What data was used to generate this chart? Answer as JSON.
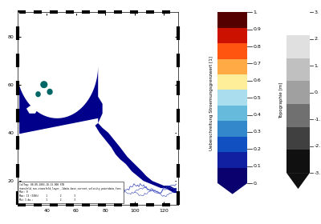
{
  "colorbar1_label": "Ueberschreitung Stroemungsgrenzwert [1]",
  "colorbar1_ticks": [
    0.0,
    0.1,
    0.2,
    0.3,
    0.4,
    0.5,
    0.6,
    0.7,
    0.8,
    0.9,
    1.0
  ],
  "colorbar1_tick_labels": [
    "0.",
    "0.1",
    "0.2",
    "0.3",
    "0.4",
    "0.5",
    "0.6",
    "0.7",
    "0.8",
    "0.9",
    "1."
  ],
  "colorbar1_colors": [
    "#0A006E",
    "#1020A0",
    "#1050C0",
    "#3388CC",
    "#66BBDD",
    "#AADDEE",
    "#FFEE99",
    "#FFAA44",
    "#FF5511",
    "#CC1100",
    "#550000"
  ],
  "colorbar2_label": "Topographie [m]",
  "colorbar2_ticks": [
    -3.0,
    -2.0,
    -1.0,
    0.0,
    1.0,
    2.0,
    3.0
  ],
  "colorbar2_tick_labels": [
    "-3.",
    "-2.",
    "-1.",
    "0.",
    "1.",
    "2.",
    "3."
  ],
  "colorbar2_colors": [
    "#FFFFFF",
    "#E0E0E0",
    "#C0C0C0",
    "#A0A0A0",
    "#707070",
    "#404040",
    "#101010"
  ],
  "bg_color": "#FFFFFF",
  "water_color": "#00008B",
  "border_dash_color1": "#000000",
  "border_dash_color2": "#FFFFFF",
  "xlabel_ticks": [
    40,
    60,
    80,
    100,
    120
  ],
  "ylabel_ticks": [
    20,
    40,
    60,
    80
  ],
  "figsize": [
    4.0,
    2.8
  ],
  "dpi": 100,
  "map_xlim": [
    20,
    130
  ],
  "map_ylim": [
    10,
    90
  ]
}
